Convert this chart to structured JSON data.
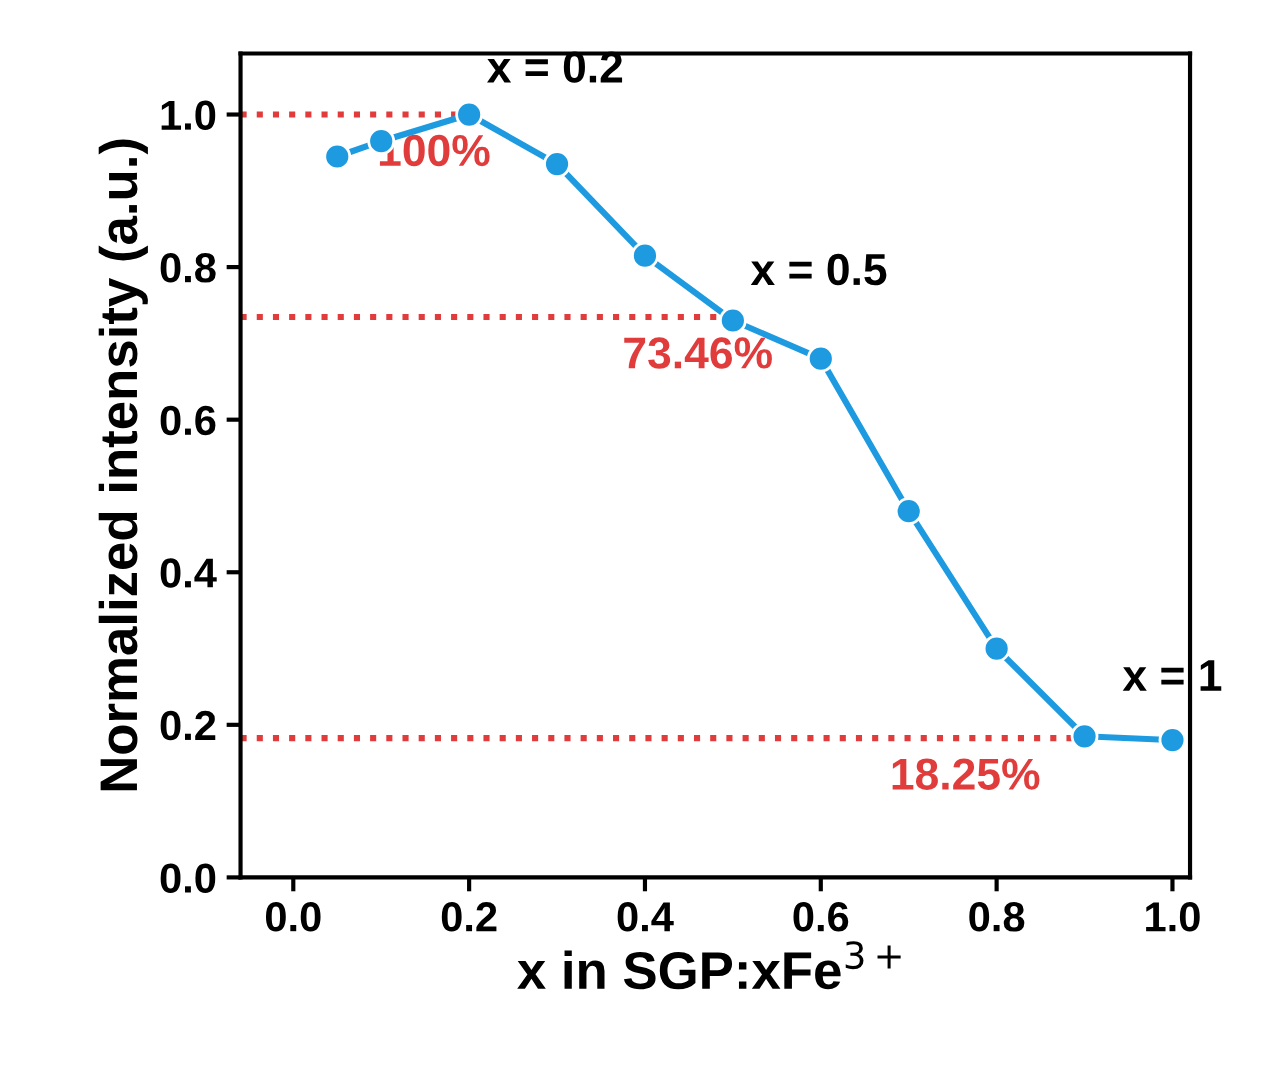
{
  "chart_data": {
    "type": "line",
    "xlabel": "x in SGP:xFe$^{3+}$",
    "ylabel": "Normalized intensity (a.u.)",
    "x": [
      0.05,
      0.1,
      0.2,
      0.3,
      0.4,
      0.5,
      0.6,
      0.7,
      0.8,
      0.9,
      1.0
    ],
    "series": [
      {
        "color": "#1e9be0",
        "values": [
          0.945,
          0.965,
          1.0,
          0.935,
          0.815,
          0.73,
          0.68,
          0.48,
          0.3,
          0.185,
          0.18
        ]
      }
    ],
    "marker": "circle",
    "xlim": [
      -0.06,
      1.02
    ],
    "ylim": [
      0,
      1.08
    ],
    "xticks": [
      {
        "value": 0.0,
        "label": "0.0"
      },
      0.2,
      0.4,
      0.6,
      0.8,
      {
        "value": 1.0,
        "label": "1.0"
      }
    ],
    "yticks": [
      {
        "value": 0.0,
        "label": "0.0"
      },
      0.2,
      0.4,
      0.6,
      0.8,
      {
        "value": 1.0,
        "label": "1.0"
      }
    ],
    "ref_lines": [
      {
        "axis": "y",
        "value": 1.0,
        "label": "100%",
        "color": "#e03c3c",
        "line_style": "dotted"
      },
      {
        "axis": "y",
        "value": 0.7346,
        "label": "73.46%",
        "color": "#e03c3c",
        "line_style": "dotted"
      },
      {
        "axis": "y",
        "value": 0.1825,
        "label": "18.25%",
        "color": "#e03c3c",
        "line_style": "dotted"
      }
    ],
    "annotations": [
      {
        "text": "x = 0.2",
        "x": 0.2,
        "y": 1.0
      },
      {
        "text": "x = 0.5",
        "x": 0.5,
        "y": 0.7346
      },
      {
        "text": "x = 1",
        "x": 1.0,
        "y": 0.1825
      }
    ],
    "grid": false,
    "legend": false
  }
}
